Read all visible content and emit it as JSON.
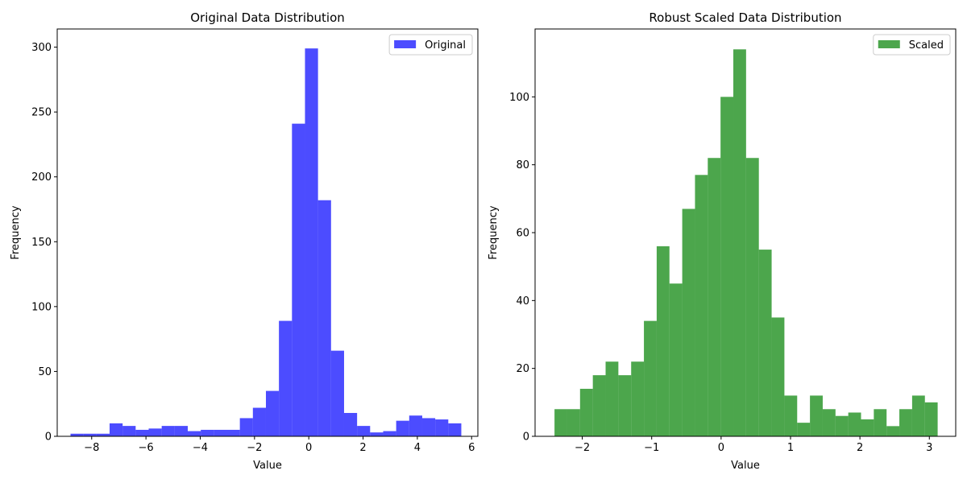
{
  "chart_data": [
    {
      "type": "bar",
      "title": "Original Data Distribution",
      "xlabel": "Value",
      "ylabel": "Frequency",
      "xlim": [
        -9.27,
        6.23
      ],
      "ylim": [
        0,
        314
      ],
      "xticks": [
        -8,
        -6,
        -4,
        -2,
        0,
        2,
        4,
        6
      ],
      "xtick_labels": [
        "−8",
        "−6",
        "−4",
        "−2",
        "0",
        "2",
        "4",
        "6"
      ],
      "yticks": [
        0,
        50,
        100,
        150,
        200,
        250,
        300
      ],
      "ytick_labels": [
        "0",
        "50",
        "100",
        "150",
        "200",
        "250",
        "300"
      ],
      "legend": {
        "label": "Original",
        "placement": "upper right"
      },
      "color": "#0000ff",
      "alpha": 0.7,
      "bins": {
        "edges": [
          -8.78,
          -8.3,
          -7.82,
          -7.34,
          -6.86,
          -6.38,
          -5.9,
          -5.42,
          -4.94,
          -4.46,
          -3.98,
          -3.5,
          -3.02,
          -2.54,
          -2.06,
          -1.58,
          -1.1,
          -0.62,
          -0.14,
          0.34,
          0.82,
          1.3,
          1.78,
          2.26,
          2.74,
          3.22,
          3.7,
          4.18,
          4.66,
          5.14,
          5.62
        ],
        "values": [
          2,
          2,
          2,
          10,
          8,
          5,
          6,
          8,
          8,
          4,
          5,
          5,
          5,
          14,
          22,
          35,
          89,
          241,
          299,
          182,
          66,
          18,
          8,
          3,
          4,
          12,
          16,
          14,
          13,
          10
        ]
      }
    },
    {
      "type": "bar",
      "title": "Robust Scaled Data Distribution",
      "xlabel": "Value",
      "ylabel": "Frequency",
      "xlim": [
        -2.68,
        3.38
      ],
      "ylim": [
        0,
        120
      ],
      "xticks": [
        -2,
        -1,
        0,
        1,
        2,
        3
      ],
      "xtick_labels": [
        "−2",
        "−1",
        "0",
        "1",
        "2",
        "3"
      ],
      "yticks": [
        0,
        20,
        40,
        60,
        80,
        100
      ],
      "ytick_labels": [
        "0",
        "20",
        "40",
        "60",
        "80",
        "100"
      ],
      "legend": {
        "label": "Scaled",
        "placement": "upper right"
      },
      "color": "#008000",
      "alpha": 0.7,
      "bins": {
        "edges": [
          -2.4,
          -2.216,
          -2.032,
          -1.848,
          -1.664,
          -1.48,
          -1.296,
          -1.112,
          -0.928,
          -0.744,
          -0.56,
          -0.376,
          -0.192,
          -0.008,
          0.176,
          0.36,
          0.544,
          0.728,
          0.912,
          1.096,
          1.28,
          1.464,
          1.648,
          1.832,
          2.016,
          2.2,
          2.384,
          2.568,
          2.752,
          2.936,
          3.12
        ],
        "values": [
          8,
          8,
          14,
          18,
          22,
          18,
          22,
          34,
          56,
          45,
          67,
          77,
          82,
          100,
          114,
          82,
          55,
          35,
          12,
          4,
          12,
          8,
          6,
          7,
          5,
          8,
          3,
          8,
          12,
          10
        ]
      }
    }
  ]
}
